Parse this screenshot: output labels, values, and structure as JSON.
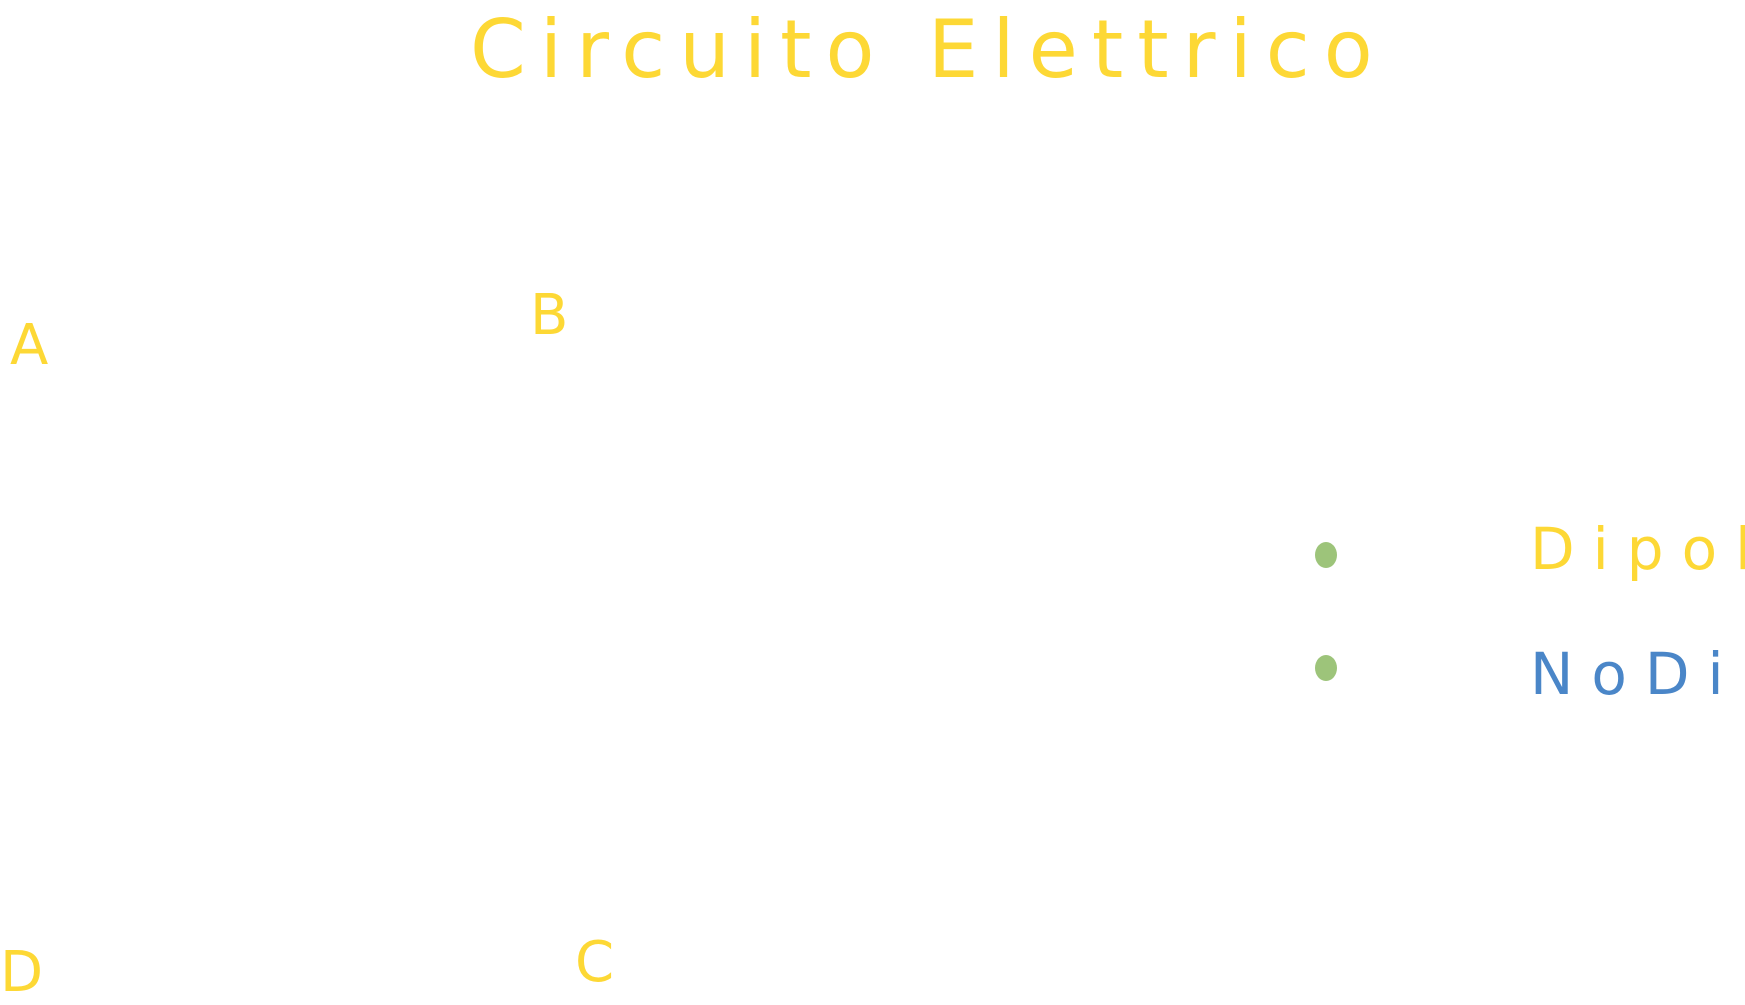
{
  "title": "Circuito Elettrico",
  "nodes": [
    {
      "id": "a",
      "label": "A"
    },
    {
      "id": "b",
      "label": "B"
    },
    {
      "id": "c",
      "label": "C"
    },
    {
      "id": "d",
      "label": "D"
    }
  ],
  "legend": [
    {
      "label": "Dipoli",
      "bullet_color": "#9DC47A",
      "text_color": "#FDD835"
    },
    {
      "label": "NoDi",
      "bullet_color": "#9DC47A",
      "text_color": "#4A86C8"
    }
  ],
  "colors": {
    "ink_yellow": "#FDD835",
    "ink_blue": "#4A86C8",
    "ink_green": "#9DC47A",
    "background": "#FFFFFF"
  }
}
